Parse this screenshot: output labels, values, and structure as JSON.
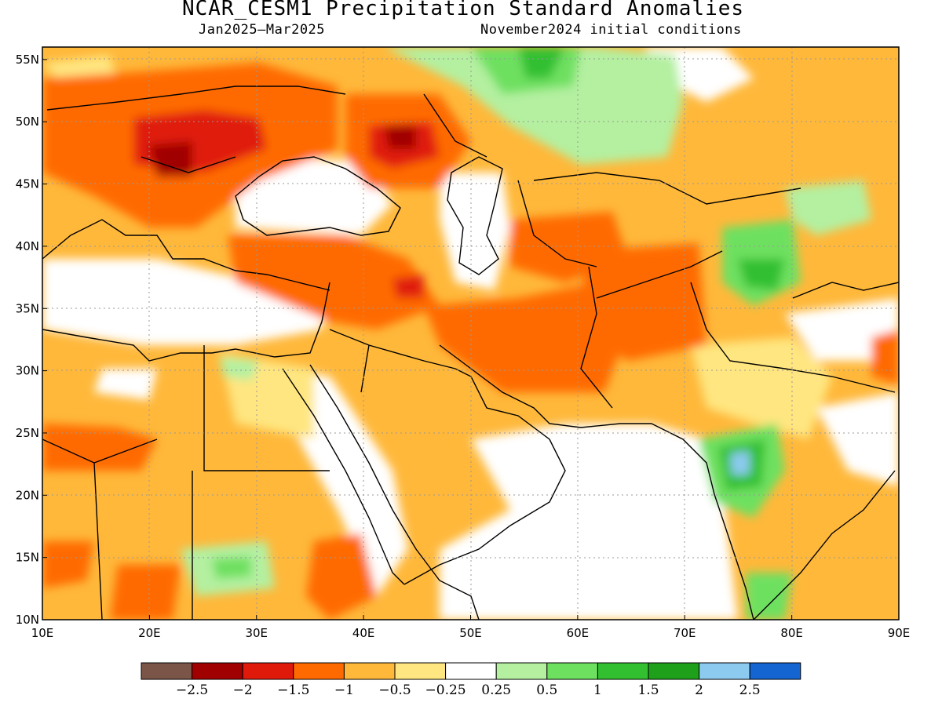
{
  "title": "NCAR_CESM1 Precipitation Standard Anomalies",
  "subtitle_left": "Jan2025–Mar2025",
  "subtitle_right": "November2024 initial conditions",
  "map": {
    "lon_range": [
      10,
      90
    ],
    "lat_range": [
      10,
      56
    ],
    "lon_ticks": [
      "10E",
      "20E",
      "30E",
      "40E",
      "50E",
      "60E",
      "70E",
      "80E",
      "90E"
    ],
    "lat_ticks": [
      "10N",
      "15N",
      "20N",
      "25N",
      "30N",
      "35N",
      "40N",
      "45N",
      "50N",
      "55N"
    ],
    "grid_lines": "dotted"
  },
  "colorbar": {
    "colors": [
      "#7a5548",
      "#a00000",
      "#e01a0a",
      "#ff6a00",
      "#ffb83a",
      "#ffe680",
      "#ffffff",
      "#b4f0a0",
      "#6ee060",
      "#32c030",
      "#1ea01a",
      "#8ccaf0",
      "#1464d2"
    ],
    "labels": [
      "−2.5",
      "−2",
      "−1.5",
      "−1",
      "−0.5",
      "−0.25",
      "0.25",
      "0.5",
      "1",
      "1.5",
      "2",
      "2.5"
    ]
  }
}
